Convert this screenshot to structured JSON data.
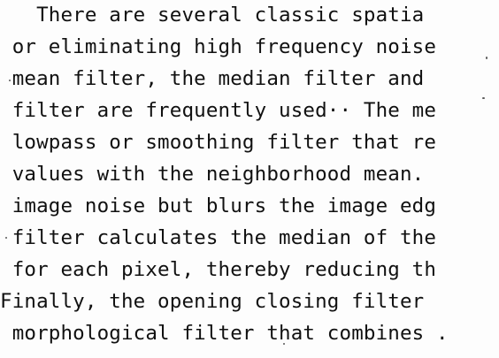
{
  "document": {
    "lines": [
      "   There are several classic spatia",
      " or eliminating high frequency noise",
      " mean filter, the median filter and",
      " filter are frequently used·· The me",
      " lowpass or smoothing filter that re",
      " values with the neighborhood mean.",
      " image noise but blurs the image edg",
      " filter calculates the median of the",
      " for each pixel, thereby reducing th",
      "Finally, the opening closing filter",
      " morphological filter that combines ."
    ]
  }
}
